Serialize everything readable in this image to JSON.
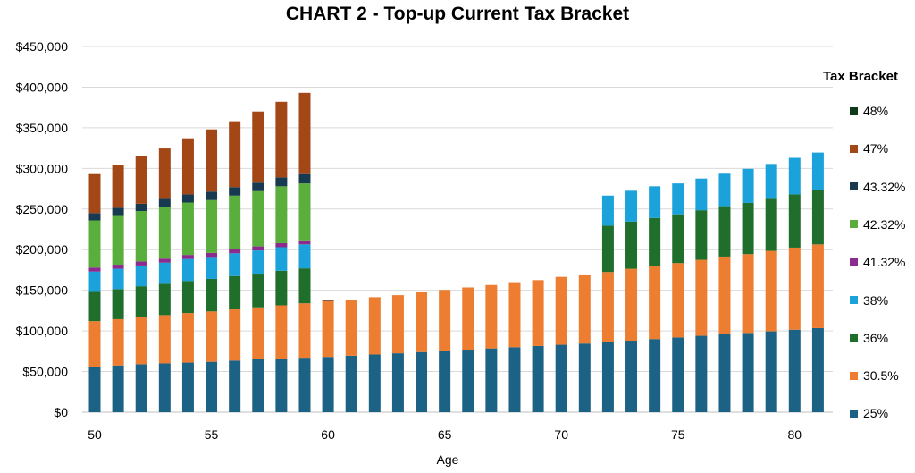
{
  "chart_data": {
    "type": "bar",
    "stacked": true,
    "title": "CHART 2 - Top-up Current Tax Bracket",
    "xlabel": "Age",
    "ylabel": "",
    "ylim": [
      0,
      450000
    ],
    "yticks": [
      "$0",
      "$50,000",
      "$100,000",
      "$150,000",
      "$200,000",
      "$250,000",
      "$300,000",
      "$350,000",
      "$400,000",
      "$450,000"
    ],
    "xticks": [
      50,
      55,
      60,
      65,
      70,
      75,
      80
    ],
    "grid": true,
    "legend_title": "Tax Bracket",
    "legend_position": "right",
    "categories": [
      50,
      51,
      52,
      53,
      54,
      55,
      56,
      57,
      58,
      59,
      60,
      61,
      62,
      63,
      64,
      65,
      66,
      67,
      68,
      69,
      70,
      71,
      72,
      73,
      74,
      75,
      76,
      77,
      78,
      79,
      80,
      81
    ],
    "series": [
      {
        "name": "25%",
        "color": "#1b6285",
        "values": [
          56000,
          57500,
          59000,
          60000,
          61000,
          62000,
          63500,
          65000,
          66000,
          67000,
          68000,
          69500,
          71000,
          72500,
          74000,
          75500,
          77000,
          78500,
          80000,
          81500,
          83000,
          84500,
          86000,
          88000,
          90000,
          92000,
          94000,
          96000,
          97500,
          99500,
          101500,
          103500
        ]
      },
      {
        "name": "30.5%",
        "color": "#ed7d31",
        "values": [
          56000,
          57000,
          58000,
          59500,
          61000,
          62000,
          63000,
          64000,
          65500,
          67000,
          69000,
          69000,
          70500,
          71500,
          73500,
          75000,
          76500,
          78000,
          80000,
          81000,
          83500,
          85000,
          86500,
          88500,
          90000,
          91500,
          93500,
          95500,
          97000,
          99000,
          101000,
          103000
        ]
      },
      {
        "name": "36%",
        "color": "#1f6e2b",
        "values": [
          36000,
          37000,
          38000,
          38500,
          39500,
          40000,
          41000,
          41500,
          42500,
          43000,
          0,
          0,
          0,
          0,
          0,
          0,
          0,
          0,
          0,
          0,
          0,
          0,
          57000,
          58000,
          59000,
          60000,
          61000,
          62000,
          63000,
          64000,
          65500,
          67000
        ]
      },
      {
        "name": "38%",
        "color": "#1ba2da",
        "values": [
          25000,
          25000,
          25500,
          26000,
          27000,
          27000,
          28000,
          28500,
          29000,
          29500,
          0,
          0,
          0,
          0,
          0,
          0,
          0,
          0,
          0,
          0,
          0,
          0,
          37000,
          38000,
          39000,
          38000,
          39000,
          40000,
          42000,
          43000,
          45000,
          46000
        ]
      },
      {
        "name": "41.32%",
        "color": "#8b2b8e",
        "values": [
          5000,
          5000,
          5000,
          5000,
          5000,
          5000,
          5000,
          5000,
          5000,
          5000,
          0,
          0,
          0,
          0,
          0,
          0,
          0,
          0,
          0,
          0,
          0,
          0,
          0,
          0,
          0,
          0,
          0,
          0,
          0,
          0,
          0,
          0
        ]
      },
      {
        "name": "42.32%",
        "color": "#5aae3c",
        "values": [
          58000,
          60000,
          62000,
          63500,
          64500,
          65000,
          66000,
          68000,
          70000,
          70000,
          0,
          0,
          0,
          0,
          0,
          0,
          0,
          0,
          0,
          0,
          0,
          0,
          0,
          0,
          0,
          0,
          0,
          0,
          0,
          0,
          0,
          0
        ]
      },
      {
        "name": "43.32%",
        "color": "#173a50",
        "values": [
          9000,
          10000,
          9000,
          10000,
          10000,
          10500,
          10500,
          10500,
          11000,
          11500,
          1500,
          0,
          0,
          0,
          0,
          0,
          0,
          0,
          0,
          0,
          0,
          0,
          0,
          0,
          0,
          0,
          0,
          0,
          0,
          0,
          0,
          0
        ]
      },
      {
        "name": "47%",
        "color": "#a44717",
        "values": [
          48000,
          53000,
          58500,
          62000,
          69000,
          76500,
          81000,
          87500,
          93000,
          100000,
          0,
          0,
          0,
          0,
          0,
          0,
          0,
          0,
          0,
          0,
          0,
          0,
          0,
          0,
          0,
          0,
          0,
          0,
          0,
          0,
          0,
          0
        ]
      },
      {
        "name": "48%",
        "color": "#0d3b1a",
        "values": [
          0,
          0,
          0,
          0,
          0,
          0,
          0,
          0,
          0,
          0,
          0,
          0,
          0,
          0,
          0,
          0,
          0,
          0,
          0,
          0,
          0,
          0,
          0,
          0,
          0,
          0,
          0,
          0,
          0,
          0,
          0,
          0
        ]
      }
    ]
  }
}
